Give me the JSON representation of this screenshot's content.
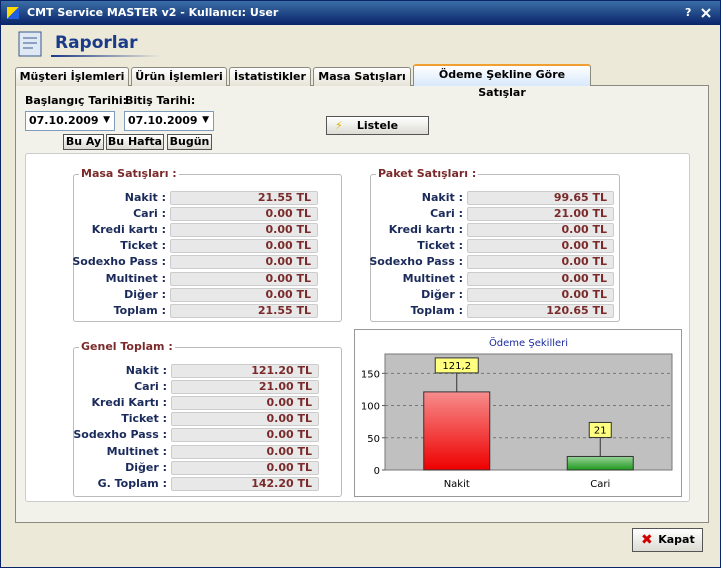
{
  "window": {
    "title": "CMT Service MASTER v2  -  Kullanıcı: User",
    "help_button": "?"
  },
  "header": {
    "title": "Raporlar"
  },
  "tabs": [
    "Müşteri İşlemleri",
    "Ürün İşlemleri",
    "İstatistikler",
    "Masa Satışları",
    "Ödeme Şekline Göre Satışlar"
  ],
  "active_tab": 4,
  "filters": {
    "start_label": "Başlangıç Tarihi:",
    "start_value": "07.10.2009",
    "end_label": "Bitiş Tarihi:",
    "end_value": "07.10.2009",
    "quick_buttons": [
      "Bu Ay",
      "Bu Hafta",
      "Bugün"
    ],
    "list_button": "Listele"
  },
  "masa": {
    "title": "Masa Satışları :",
    "rows": [
      [
        "Nakit :",
        "21.55 TL"
      ],
      [
        "Cari :",
        "0.00 TL"
      ],
      [
        "Kredi kartı :",
        "0.00 TL"
      ],
      [
        "Ticket :",
        "0.00 TL"
      ],
      [
        "Sodexho Pass :",
        "0.00 TL"
      ],
      [
        "Multinet :",
        "0.00 TL"
      ],
      [
        "Diğer :",
        "0.00 TL"
      ],
      [
        "Toplam :",
        "21.55 TL"
      ]
    ]
  },
  "paket": {
    "title": "Paket Satışları :",
    "rows": [
      [
        "Nakit :",
        "99.65 TL"
      ],
      [
        "Cari :",
        "21.00 TL"
      ],
      [
        "Kredi kartı :",
        "0.00 TL"
      ],
      [
        "Ticket :",
        "0.00 TL"
      ],
      [
        "Sodexho Pass :",
        "0.00 TL"
      ],
      [
        "Multinet :",
        "0.00 TL"
      ],
      [
        "Diğer :",
        "0.00 TL"
      ],
      [
        "Toplam :",
        "120.65 TL"
      ]
    ]
  },
  "genel": {
    "title": "Genel Toplam :",
    "rows": [
      [
        "Nakit :",
        "121.20 TL"
      ],
      [
        "Cari :",
        "21.00 TL"
      ],
      [
        "Kredi Kartı :",
        "0.00 TL"
      ],
      [
        "Ticket :",
        "0.00 TL"
      ],
      [
        "Sodexho Pass :",
        "0.00 TL"
      ],
      [
        "Multinet :",
        "0.00 TL"
      ],
      [
        "Diğer :",
        "0.00 TL"
      ],
      [
        "G. Toplam :",
        "142.20 TL"
      ]
    ]
  },
  "chart_data": {
    "type": "bar",
    "title": "Ödeme Şekilleri",
    "categories": [
      "Nakit",
      "Cari"
    ],
    "values": [
      121.2,
      21
    ],
    "value_labels": [
      "121,2",
      "21"
    ],
    "colors": [
      "#ee0000",
      "#1e9a1e"
    ],
    "ylim": [
      0,
      180
    ],
    "yticks": [
      0,
      50,
      100,
      150
    ],
    "grid": true
  },
  "close_button": "Kapat"
}
